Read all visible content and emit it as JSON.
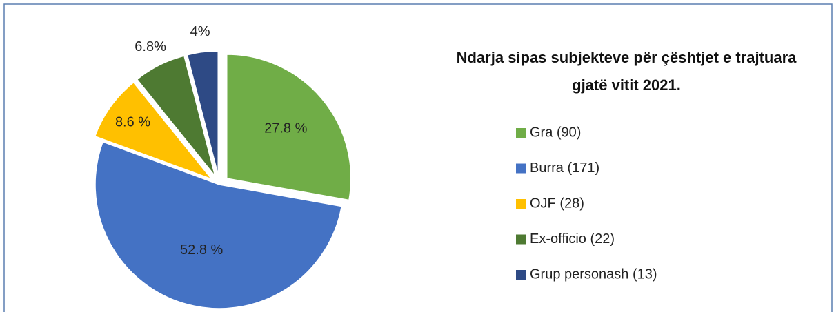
{
  "chart_data": {
    "type": "pie",
    "title": "Ndarja sipas subjekteve për çështjet e trajtuara gjatë vitit 2021.",
    "categories": [
      "Gra (90)",
      "Burra (171)",
      "OJF (28)",
      "Ex-officio (22)",
      "Grup personash (13)"
    ],
    "values": [
      27.8,
      52.8,
      8.6,
      6.8,
      4
    ],
    "value_labels": [
      "27.8 %",
      "52.8 %",
      "8.6 %",
      "6.8%",
      "4%"
    ],
    "colors": [
      "#70ad47",
      "#4472c4",
      "#ffc000",
      "#4e7a32",
      "#2e4a85"
    ],
    "legend": "right"
  }
}
